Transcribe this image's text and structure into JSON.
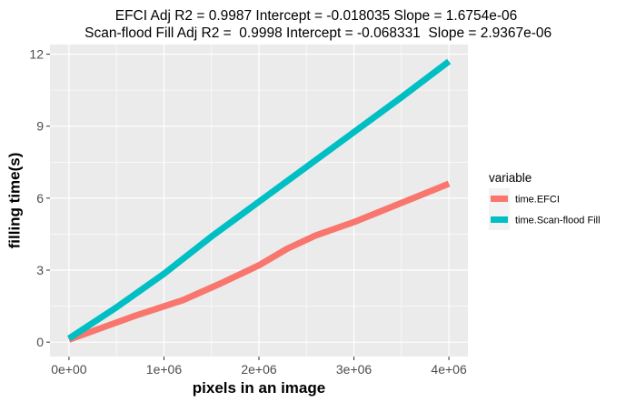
{
  "chart_data": {
    "type": "line",
    "title_lines": [
      "EFCI Adj R2 =  0.9987 Intercept = -0.018035  Slope = 1.6754e-06",
      " Scan-flood Fill Adj R2 =  0.9998 Intercept = -0.068331  Slope = 2.9367e-06"
    ],
    "xlabel": "pixels in an image",
    "ylabel": "filling time(s)",
    "xlim": [
      -200000,
      4200000
    ],
    "ylim": [
      -0.6,
      12.4
    ],
    "x_ticks": [
      0,
      1000000,
      2000000,
      3000000,
      4000000
    ],
    "x_tick_labels": [
      "0e+00",
      "1e+06",
      "2e+06",
      "3e+06",
      "4e+06"
    ],
    "y_ticks": [
      0,
      3,
      6,
      9,
      12
    ],
    "y_tick_labels": [
      "0",
      "3",
      "6",
      "9",
      "12"
    ],
    "grid": true,
    "panel_background": "#ebebeb",
    "legend": {
      "title": "variable",
      "position": "right"
    },
    "series": [
      {
        "name": "time.EFCI",
        "color": "#f8766d",
        "x": [
          0,
          700000,
          1200000,
          1600000,
          2000000,
          2300000,
          2600000,
          3000000,
          3500000,
          4000000
        ],
        "y": [
          0.1,
          1.1,
          1.75,
          2.45,
          3.2,
          3.9,
          4.45,
          5.0,
          5.8,
          6.6
        ]
      },
      {
        "name": "time.Scan-flood Fill",
        "color": "#00bfc4",
        "x": [
          0,
          500000,
          1000000,
          1500000,
          2000000,
          2500000,
          3000000,
          3500000,
          4000000
        ],
        "y": [
          0.15,
          1.45,
          2.85,
          4.4,
          5.85,
          7.3,
          8.75,
          10.2,
          11.7
        ]
      }
    ]
  }
}
